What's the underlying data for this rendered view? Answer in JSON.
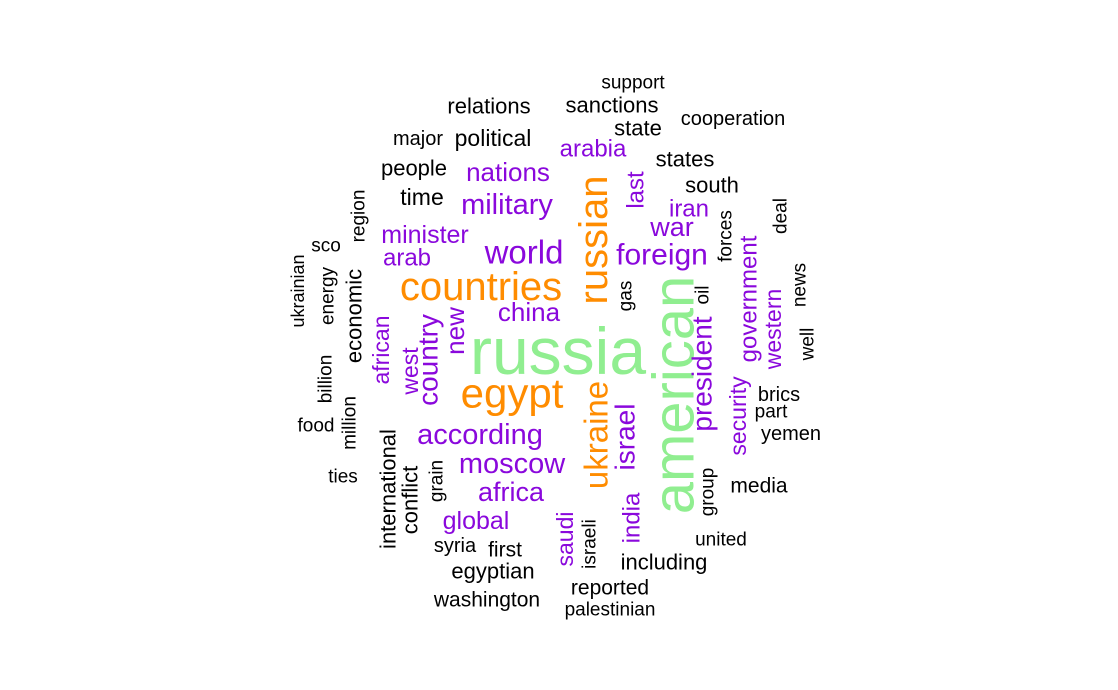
{
  "palette": {
    "green": "#90ee90",
    "orange": "#ff8c00",
    "purple": "#8a08dc",
    "black": "#000000"
  },
  "words": [
    {
      "text": "russia",
      "color": "green"
    },
    {
      "text": "american",
      "color": "green"
    },
    {
      "text": "egypt",
      "color": "orange"
    },
    {
      "text": "countries",
      "color": "orange"
    },
    {
      "text": "russian",
      "color": "orange"
    },
    {
      "text": "ukraine",
      "color": "orange"
    },
    {
      "text": "world",
      "color": "purple"
    },
    {
      "text": "military",
      "color": "purple"
    },
    {
      "text": "nations",
      "color": "purple"
    },
    {
      "text": "arabia",
      "color": "purple"
    },
    {
      "text": "minister",
      "color": "purple"
    },
    {
      "text": "arab",
      "color": "purple"
    },
    {
      "text": "foreign",
      "color": "purple"
    },
    {
      "text": "war",
      "color": "purple"
    },
    {
      "text": "iran",
      "color": "purple"
    },
    {
      "text": "last",
      "color": "purple"
    },
    {
      "text": "china",
      "color": "purple"
    },
    {
      "text": "new",
      "color": "purple"
    },
    {
      "text": "country",
      "color": "purple"
    },
    {
      "text": "west",
      "color": "purple"
    },
    {
      "text": "african",
      "color": "purple"
    },
    {
      "text": "according",
      "color": "purple"
    },
    {
      "text": "moscow",
      "color": "purple"
    },
    {
      "text": "africa",
      "color": "purple"
    },
    {
      "text": "global",
      "color": "purple"
    },
    {
      "text": "saudi",
      "color": "purple"
    },
    {
      "text": "israel",
      "color": "purple"
    },
    {
      "text": "india",
      "color": "purple"
    },
    {
      "text": "president",
      "color": "purple"
    },
    {
      "text": "government",
      "color": "purple"
    },
    {
      "text": "western",
      "color": "purple"
    },
    {
      "text": "security",
      "color": "purple"
    },
    {
      "text": "support",
      "color": "black"
    },
    {
      "text": "relations",
      "color": "black"
    },
    {
      "text": "sanctions",
      "color": "black"
    },
    {
      "text": "cooperation",
      "color": "black"
    },
    {
      "text": "state",
      "color": "black"
    },
    {
      "text": "major",
      "color": "black"
    },
    {
      "text": "political",
      "color": "black"
    },
    {
      "text": "states",
      "color": "black"
    },
    {
      "text": "people",
      "color": "black"
    },
    {
      "text": "south",
      "color": "black"
    },
    {
      "text": "time",
      "color": "black"
    },
    {
      "text": "region",
      "color": "black"
    },
    {
      "text": "deal",
      "color": "black"
    },
    {
      "text": "forces",
      "color": "black"
    },
    {
      "text": "sco",
      "color": "black"
    },
    {
      "text": "ukrainian",
      "color": "black"
    },
    {
      "text": "energy",
      "color": "black"
    },
    {
      "text": "economic",
      "color": "black"
    },
    {
      "text": "news",
      "color": "black"
    },
    {
      "text": "gas",
      "color": "black"
    },
    {
      "text": "oil",
      "color": "black"
    },
    {
      "text": "well",
      "color": "black"
    },
    {
      "text": "billion",
      "color": "black"
    },
    {
      "text": "million",
      "color": "black"
    },
    {
      "text": "brics",
      "color": "black"
    },
    {
      "text": "part",
      "color": "black"
    },
    {
      "text": "food",
      "color": "black"
    },
    {
      "text": "yemen",
      "color": "black"
    },
    {
      "text": "international",
      "color": "black"
    },
    {
      "text": "ties",
      "color": "black"
    },
    {
      "text": "conflict",
      "color": "black"
    },
    {
      "text": "grain",
      "color": "black"
    },
    {
      "text": "group",
      "color": "black"
    },
    {
      "text": "media",
      "color": "black"
    },
    {
      "text": "israeli",
      "color": "black"
    },
    {
      "text": "united",
      "color": "black"
    },
    {
      "text": "syria",
      "color": "black"
    },
    {
      "text": "first",
      "color": "black"
    },
    {
      "text": "including",
      "color": "black"
    },
    {
      "text": "egyptian",
      "color": "black"
    },
    {
      "text": "reported",
      "color": "black"
    },
    {
      "text": "washington",
      "color": "black"
    },
    {
      "text": "palestinian",
      "color": "black"
    }
  ]
}
